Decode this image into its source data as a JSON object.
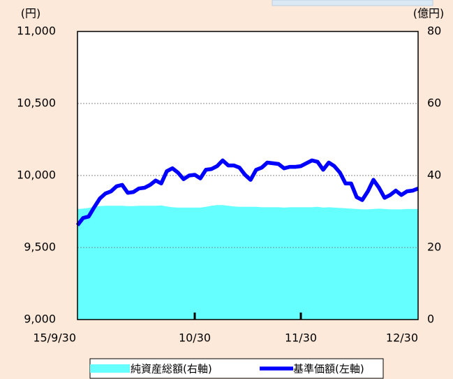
{
  "chart_data": {
    "type": "line",
    "y_label": "(円)",
    "y2_label": "(億円)",
    "categories": [
      "15/9/30",
      null,
      null,
      null,
      null,
      null,
      null,
      null,
      null,
      null,
      null,
      null,
      null,
      null,
      null,
      null,
      null,
      null,
      null,
      null,
      null,
      "10/30",
      null,
      null,
      null,
      null,
      null,
      null,
      null,
      null,
      null,
      null,
      null,
      null,
      null,
      null,
      null,
      null,
      null,
      null,
      "11/30",
      null,
      null,
      null,
      null,
      null,
      null,
      null,
      null,
      null,
      null,
      null,
      null,
      null,
      null,
      null,
      null,
      null,
      null,
      null,
      null,
      "12/30"
    ],
    "series": [
      {
        "name": "純資産総額(右軸)",
        "type": "area",
        "axis": "y2",
        "color": "#66ffff",
        "values": [
          30.7,
          30.8,
          31.0,
          31.3,
          31.5,
          31.6,
          31.6,
          31.6,
          31.6,
          31.5,
          31.5,
          31.6,
          31.6,
          31.6,
          31.6,
          31.7,
          31.4,
          31.2,
          31.1,
          31.1,
          31.1,
          31.1,
          31.1,
          31.3,
          31.6,
          31.8,
          31.8,
          31.6,
          31.4,
          31.3,
          31.3,
          31.3,
          31.3,
          31.2,
          31.2,
          31.2,
          31.2,
          31.1,
          31.2,
          31.2,
          31.2,
          31.2,
          31.2,
          31.3,
          31.1,
          31.2,
          31.1,
          31.0,
          30.9,
          30.8,
          30.7,
          30.6,
          30.6,
          30.7,
          30.8,
          30.7,
          30.6,
          30.6,
          30.6,
          30.7,
          30.7,
          30.7
        ]
      },
      {
        "name": "基準価額(左軸)",
        "type": "line",
        "axis": "y",
        "color": "#0000ff",
        "values": [
          9655,
          9705,
          9715,
          9780,
          9840,
          9875,
          9890,
          9925,
          9935,
          9880,
          9885,
          9910,
          9915,
          9935,
          9965,
          9945,
          10030,
          10050,
          10020,
          9975,
          10000,
          10005,
          9980,
          10040,
          10045,
          10065,
          10105,
          10070,
          10070,
          10055,
          10005,
          9970,
          10040,
          10055,
          10090,
          10085,
          10080,
          10050,
          10060,
          10060,
          10065,
          10085,
          10105,
          10095,
          10040,
          10090,
          10065,
          10020,
          9945,
          9945,
          9850,
          9830,
          9890,
          9970,
          9915,
          9845,
          9865,
          9895,
          9865,
          9890,
          9895,
          9910
        ]
      }
    ],
    "ylim": [
      9000,
      11000
    ],
    "yticks": [
      {
        "value": 9000,
        "label": "9,000"
      },
      {
        "value": 9500,
        "label": "9,500"
      },
      {
        "value": 10000,
        "label": "10,000"
      },
      {
        "value": 10500,
        "label": "10,500"
      },
      {
        "value": 11000,
        "label": "11,000"
      }
    ],
    "y2lim": [
      0,
      80
    ],
    "y2ticks": [
      0,
      20,
      40,
      60,
      80
    ],
    "grid": true,
    "legend": "bottom"
  }
}
